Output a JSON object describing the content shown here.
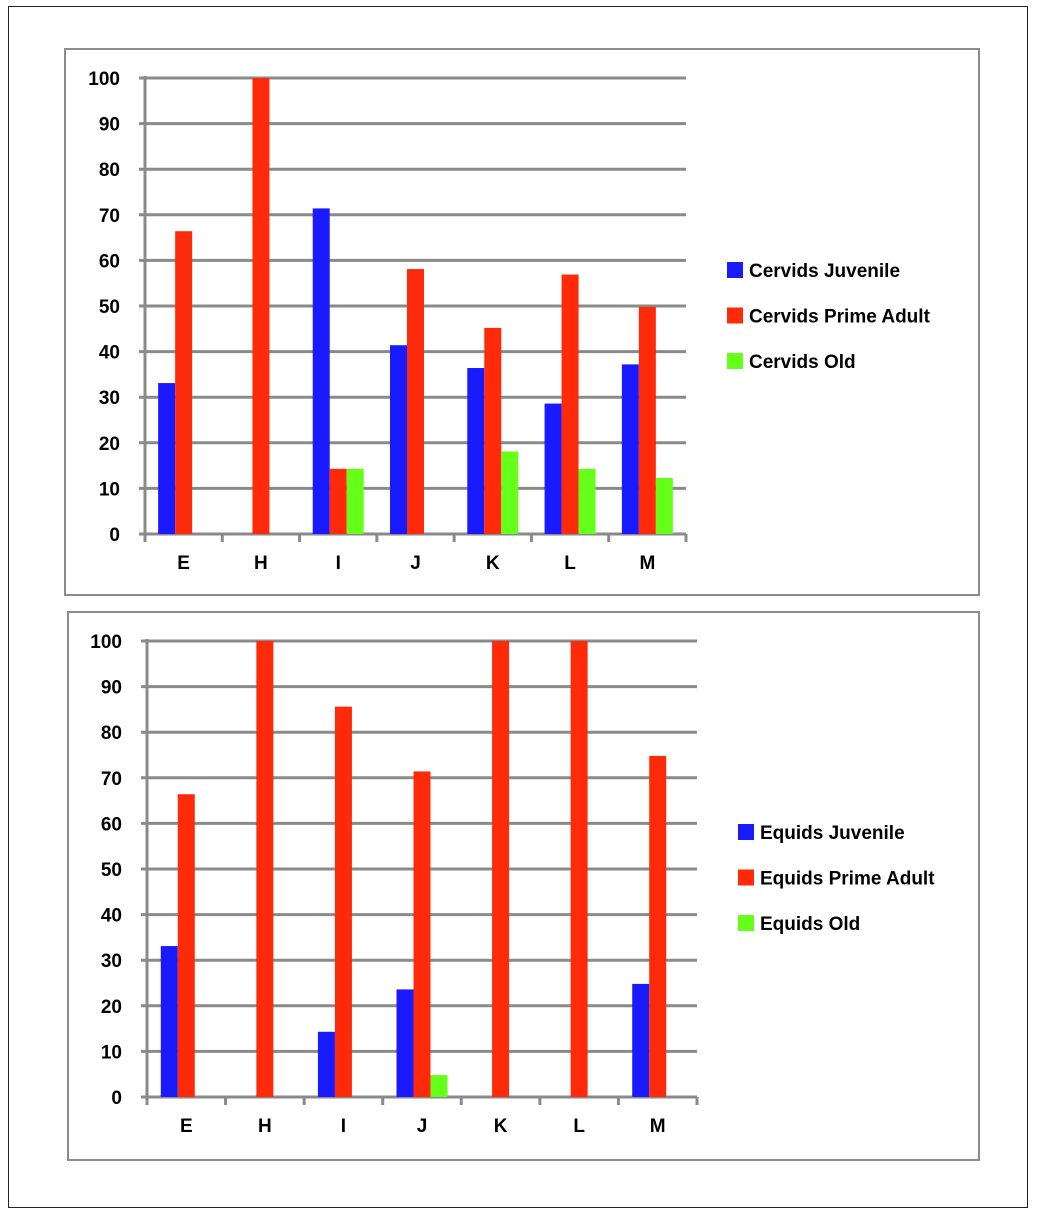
{
  "chart_data": [
    {
      "type": "bar",
      "categories": [
        "E",
        "H",
        "I",
        "J",
        "K",
        "L",
        "M"
      ],
      "ylim": [
        0,
        100
      ],
      "yticks": [
        0,
        10,
        20,
        30,
        40,
        50,
        60,
        70,
        80,
        90,
        100
      ],
      "grid": true,
      "legend_position": "right",
      "series": [
        {
          "name": "Cervids Juvenile",
          "color": "#1a1aff",
          "values": [
            33.1,
            0,
            71.4,
            41.4,
            36.4,
            28.6,
            37.2
          ]
        },
        {
          "name": "Cervids Prime Adult",
          "color": "#ff2a0a",
          "values": [
            66.4,
            100,
            14.3,
            58.1,
            45.2,
            56.9,
            49.8
          ]
        },
        {
          "name": "Cervids Old",
          "color": "#66ff1a",
          "values": [
            0,
            0,
            14.3,
            0,
            18.1,
            14.3,
            12.3
          ]
        }
      ]
    },
    {
      "type": "bar",
      "categories": [
        "E",
        "H",
        "I",
        "J",
        "K",
        "L",
        "M"
      ],
      "ylim": [
        0,
        100
      ],
      "yticks": [
        0,
        10,
        20,
        30,
        40,
        50,
        60,
        70,
        80,
        90,
        100
      ],
      "grid": true,
      "legend_position": "right",
      "series": [
        {
          "name": "Equids Juvenile",
          "color": "#1a1aff",
          "values": [
            33.1,
            0,
            14.3,
            23.6,
            0,
            0,
            24.8
          ]
        },
        {
          "name": "Equids Prime Adult",
          "color": "#ff2a0a",
          "values": [
            66.4,
            100,
            85.6,
            71.4,
            100,
            100,
            74.8
          ]
        },
        {
          "name": "Equids Old",
          "color": "#66ff1a",
          "values": [
            0,
            0,
            0,
            4.8,
            0,
            0,
            0
          ]
        }
      ]
    }
  ]
}
